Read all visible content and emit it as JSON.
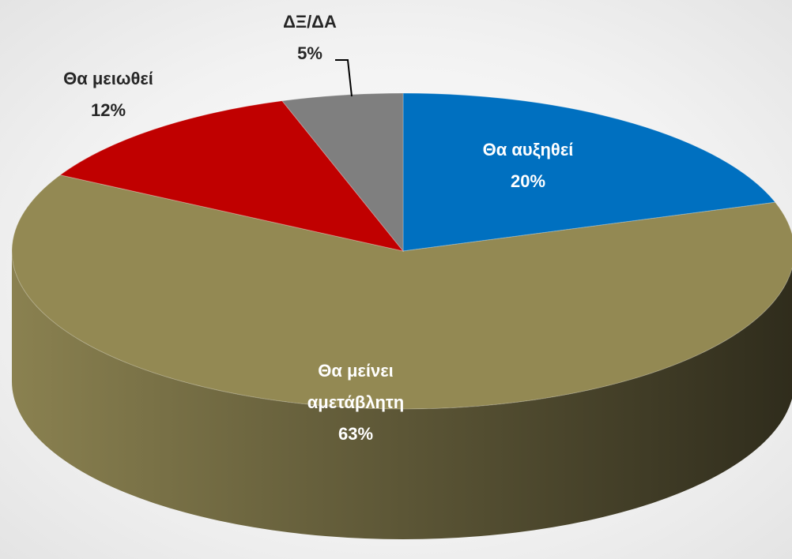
{
  "chart_data": {
    "type": "pie3d",
    "categories": [
      "Θα αυξηθεί",
      "Θα μείνει αμετάβλητη",
      "Θα μειωθεί",
      "ΔΞ/ΔΑ"
    ],
    "values": [
      20,
      63,
      12,
      5
    ],
    "value_labels": [
      "20%",
      "63%",
      "12%",
      "5%"
    ],
    "colors": [
      "#0070c0",
      "#938953",
      "#c00000",
      "#7f7f7f"
    ]
  }
}
